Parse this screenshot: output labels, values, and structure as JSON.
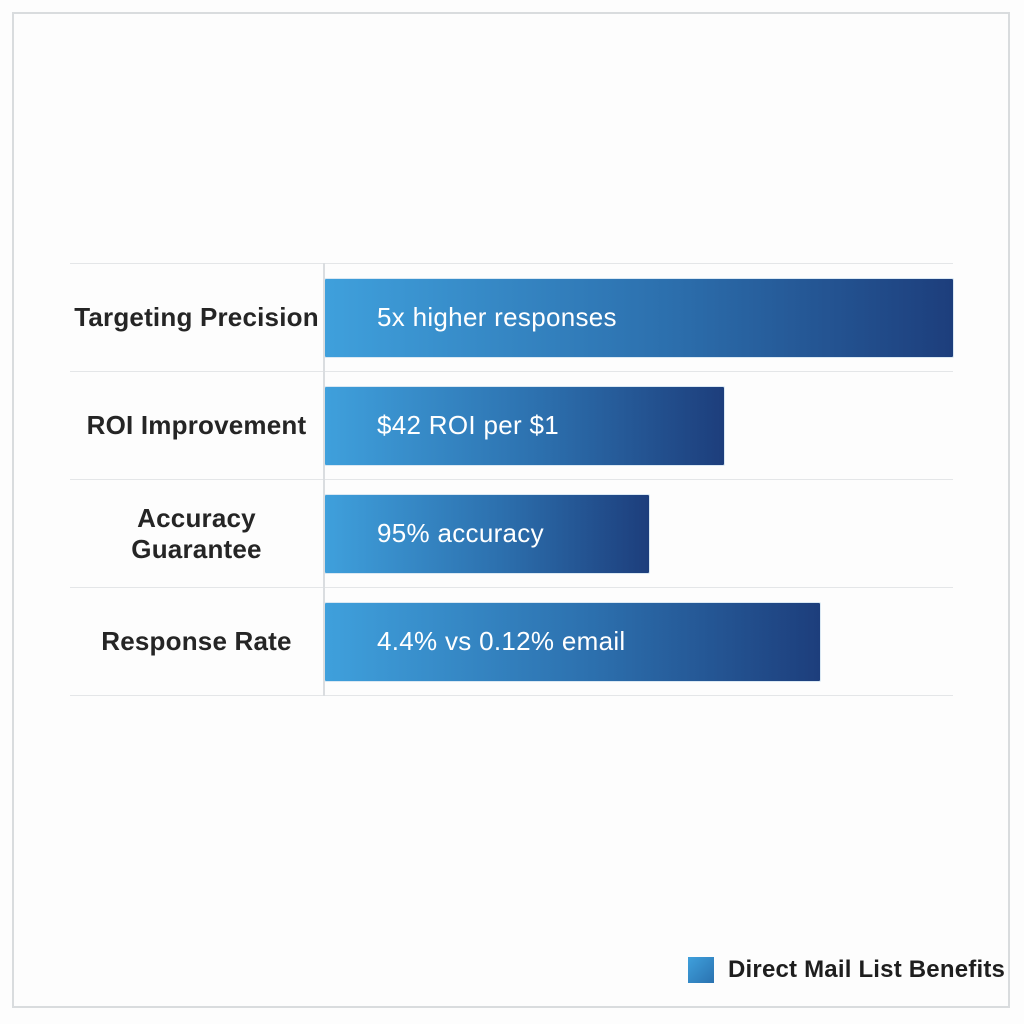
{
  "chart_data": {
    "type": "bar",
    "orientation": "horizontal",
    "title": "",
    "categories": [
      "Targeting Precision",
      "ROI Improvement",
      "Accuracy Guarantee",
      "Response Rate"
    ],
    "bar_labels": [
      "5x higher responses",
      "$42 ROI per $1",
      "95% accuracy",
      "4.4% vs 0.12% email"
    ],
    "values_pct_of_max": [
      100,
      63.5,
      51.6,
      78.9
    ],
    "legend": {
      "label": "Direct Mail List Benefits",
      "position": "bottom-right"
    },
    "grid": "horizontal-row-dividers",
    "colors": {
      "bar_gradient_start": "#3fa0dc",
      "bar_gradient_end": "#1d3e7c",
      "gridline": "#e4e6e8",
      "axis_line": "#dadde0",
      "category_text": "#252525",
      "bar_text": "#ffffff",
      "frame_border": "#d9dcde",
      "background": "#fdfdfd"
    }
  }
}
